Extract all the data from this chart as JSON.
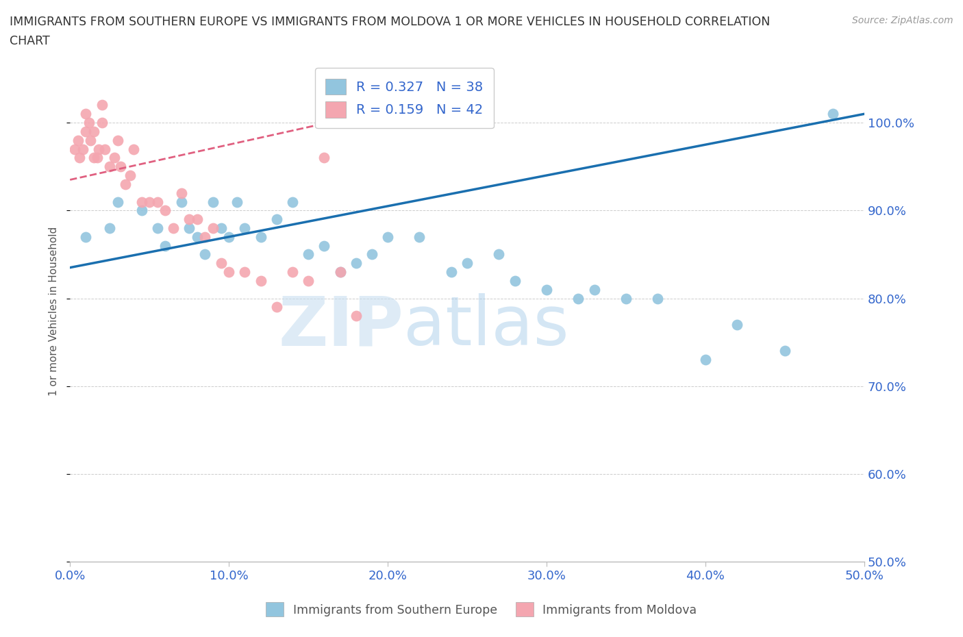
{
  "title_line1": "IMMIGRANTS FROM SOUTHERN EUROPE VS IMMIGRANTS FROM MOLDOVA 1 OR MORE VEHICLES IN HOUSEHOLD CORRELATION",
  "title_line2": "CHART",
  "source": "Source: ZipAtlas.com",
  "ylabel": "1 or more Vehicles in Household",
  "xmin": 0.0,
  "xmax": 50.0,
  "ymin": 50.0,
  "ymax": 107.0,
  "ytick_labels": [
    "50.0%",
    "60.0%",
    "70.0%",
    "80.0%",
    "90.0%",
    "100.0%"
  ],
  "ytick_values": [
    50,
    60,
    70,
    80,
    90,
    100
  ],
  "xtick_labels": [
    "0.0%",
    "10.0%",
    "20.0%",
    "30.0%",
    "40.0%",
    "50.0%"
  ],
  "xtick_values": [
    0,
    10,
    20,
    30,
    40,
    50
  ],
  "blue_color": "#92c5de",
  "blue_line_color": "#1a6faf",
  "pink_color": "#f4a6b0",
  "pink_line_color": "#e06080",
  "blue_R": 0.327,
  "blue_N": 38,
  "pink_R": 0.159,
  "pink_N": 42,
  "legend_label_blue": "Immigrants from Southern Europe",
  "legend_label_pink": "Immigrants from Moldova",
  "watermark_zip": "ZIP",
  "watermark_atlas": "atlas",
  "blue_scatter_x": [
    1.0,
    2.5,
    3.0,
    4.5,
    5.5,
    6.0,
    7.0,
    7.5,
    8.0,
    8.5,
    9.0,
    9.5,
    10.0,
    10.5,
    11.0,
    12.0,
    13.0,
    14.0,
    15.0,
    16.0,
    17.0,
    18.0,
    19.0,
    20.0,
    22.0,
    24.0,
    25.0,
    27.0,
    28.0,
    30.0,
    32.0,
    33.0,
    35.0,
    37.0,
    40.0,
    42.0,
    45.0,
    48.0
  ],
  "blue_scatter_y": [
    87,
    88,
    91,
    90,
    88,
    86,
    91,
    88,
    87,
    85,
    91,
    88,
    87,
    91,
    88,
    87,
    89,
    91,
    85,
    86,
    83,
    84,
    85,
    87,
    87,
    83,
    84,
    85,
    82,
    81,
    80,
    81,
    80,
    80,
    73,
    77,
    74,
    101
  ],
  "pink_scatter_x": [
    0.3,
    0.5,
    0.6,
    0.8,
    1.0,
    1.0,
    1.2,
    1.3,
    1.5,
    1.5,
    1.7,
    1.8,
    2.0,
    2.0,
    2.2,
    2.5,
    2.8,
    3.0,
    3.2,
    3.5,
    3.8,
    4.0,
    4.5,
    5.0,
    5.5,
    6.0,
    6.5,
    7.0,
    7.5,
    8.0,
    8.5,
    9.0,
    9.5,
    10.0,
    11.0,
    12.0,
    13.0,
    14.0,
    15.0,
    16.0,
    17.0,
    18.0
  ],
  "pink_scatter_y": [
    97,
    98,
    96,
    97,
    99,
    101,
    100,
    98,
    96,
    99,
    96,
    97,
    100,
    102,
    97,
    95,
    96,
    98,
    95,
    93,
    94,
    97,
    91,
    91,
    91,
    90,
    88,
    92,
    89,
    89,
    87,
    88,
    84,
    83,
    83,
    82,
    79,
    83,
    82,
    96,
    83,
    78
  ],
  "blue_trend_x0": 0.0,
  "blue_trend_x1": 50.0,
  "blue_trend_y0": 83.5,
  "blue_trend_y1": 101.0,
  "pink_trend_x0": 0.0,
  "pink_trend_x1": 20.0,
  "pink_trend_y0": 93.5,
  "pink_trend_y1": 101.5
}
